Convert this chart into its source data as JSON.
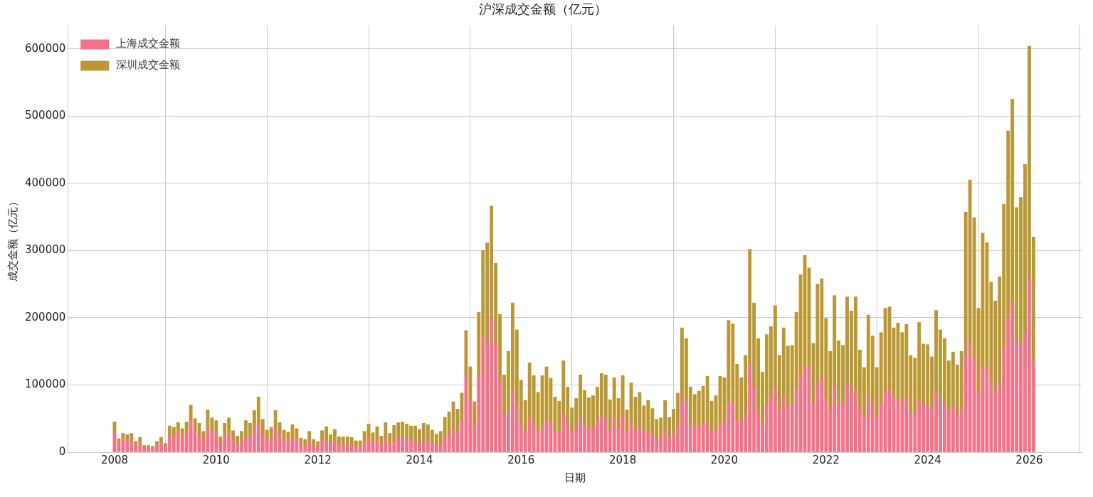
{
  "chart_data": {
    "type": "bar",
    "title": "沪深成交金额（亿元）",
    "xlabel": "日期",
    "ylabel": "成交金额（亿元）",
    "stacked": true,
    "grid": true,
    "legend": "top left",
    "xlim": [
      "2007-01-30",
      "2027-01-12"
    ],
    "xticks": [
      "2008",
      "2010",
      "2012",
      "2014",
      "2016",
      "2018",
      "2020",
      "2022",
      "2024",
      "2026"
    ],
    "ylim": [
      0,
      635000
    ],
    "yticks": [
      0,
      100000,
      200000,
      300000,
      400000,
      500000,
      600000
    ],
    "x": [
      "2008-01",
      "2008-02",
      "2008-03",
      "2008-04",
      "2008-05",
      "2008-06",
      "2008-07",
      "2008-08",
      "2008-09",
      "2008-10",
      "2008-11",
      "2008-12",
      "2009-01",
      "2009-02",
      "2009-03",
      "2009-04",
      "2009-05",
      "2009-06",
      "2009-07",
      "2009-08",
      "2009-09",
      "2009-10",
      "2009-11",
      "2009-12",
      "2010-01",
      "2010-02",
      "2010-03",
      "2010-04",
      "2010-05",
      "2010-06",
      "2010-07",
      "2010-08",
      "2010-09",
      "2010-10",
      "2010-11",
      "2010-12",
      "2011-01",
      "2011-02",
      "2011-03",
      "2011-04",
      "2011-05",
      "2011-06",
      "2011-07",
      "2011-08",
      "2011-09",
      "2011-10",
      "2011-11",
      "2011-12",
      "2012-01",
      "2012-02",
      "2012-03",
      "2012-04",
      "2012-05",
      "2012-06",
      "2012-07",
      "2012-08",
      "2012-09",
      "2012-10",
      "2012-11",
      "2012-12",
      "2013-01",
      "2013-02",
      "2013-03",
      "2013-04",
      "2013-05",
      "2013-06",
      "2013-07",
      "2013-08",
      "2013-09",
      "2013-10",
      "2013-11",
      "2013-12",
      "2014-01",
      "2014-02",
      "2014-03",
      "2014-04",
      "2014-05",
      "2014-06",
      "2014-07",
      "2014-08",
      "2014-09",
      "2014-10",
      "2014-11",
      "2014-12",
      "2015-01",
      "2015-02",
      "2015-03",
      "2015-04",
      "2015-05",
      "2015-06",
      "2015-07",
      "2015-08",
      "2015-09",
      "2015-10",
      "2015-11",
      "2015-12",
      "2016-01",
      "2016-02",
      "2016-03",
      "2016-04",
      "2016-05",
      "2016-06",
      "2016-07",
      "2016-08",
      "2016-09",
      "2016-10",
      "2016-11",
      "2016-12",
      "2017-01",
      "2017-02",
      "2017-03",
      "2017-04",
      "2017-05",
      "2017-06",
      "2017-07",
      "2017-08",
      "2017-09",
      "2017-10",
      "2017-11",
      "2017-12",
      "2018-01",
      "2018-02",
      "2018-03",
      "2018-04",
      "2018-05",
      "2018-06",
      "2018-07",
      "2018-08",
      "2018-09",
      "2018-10",
      "2018-11",
      "2018-12",
      "2019-01",
      "2019-02",
      "2019-03",
      "2019-04",
      "2019-05",
      "2019-06",
      "2019-07",
      "2019-08",
      "2019-09",
      "2019-10",
      "2019-11",
      "2019-12",
      "2020-01",
      "2020-02",
      "2020-03",
      "2020-04",
      "2020-05",
      "2020-06",
      "2020-07",
      "2020-08",
      "2020-09",
      "2020-10",
      "2020-11",
      "2020-12",
      "2021-01",
      "2021-02",
      "2021-03",
      "2021-04",
      "2021-05",
      "2021-06",
      "2021-07",
      "2021-08",
      "2021-09",
      "2021-10",
      "2021-11",
      "2021-12",
      "2022-01",
      "2022-02",
      "2022-03",
      "2022-04",
      "2022-05",
      "2022-06",
      "2022-07",
      "2022-08",
      "2022-09",
      "2022-10",
      "2022-11",
      "2022-12",
      "2023-01",
      "2023-02",
      "2023-03",
      "2023-04",
      "2023-05",
      "2023-06",
      "2023-07",
      "2023-08",
      "2023-09",
      "2023-10",
      "2023-11",
      "2023-12",
      "2024-01",
      "2024-02",
      "2024-03",
      "2024-04",
      "2024-05",
      "2024-06",
      "2024-07",
      "2024-08",
      "2024-09",
      "2024-10",
      "2024-11",
      "2024-12",
      "2025-01",
      "2025-02",
      "2025-03",
      "2025-04",
      "2025-05",
      "2025-06",
      "2025-07",
      "2025-08",
      "2025-09",
      "2025-10",
      "2025-11",
      "2025-12",
      "2026-01",
      "2026-02"
    ],
    "series": [
      {
        "name": "上海成交金额",
        "color": "#f77189",
        "values": [
          30000,
          13000,
          18000,
          18000,
          19000,
          10000,
          14000,
          7000,
          7000,
          6000,
          10000,
          14000,
          9000,
          26000,
          23000,
          29000,
          23000,
          30000,
          47000,
          33000,
          26000,
          19000,
          38000,
          31000,
          28000,
          13000,
          24000,
          29000,
          18000,
          11000,
          17000,
          23000,
          22000,
          35000,
          44000,
          26000,
          19000,
          20000,
          35000,
          27000,
          19000,
          18000,
          22000,
          18000,
          11000,
          10000,
          16000,
          9000,
          8000,
          17000,
          19000,
          13000,
          18000,
          11000,
          11000,
          11000,
          10000,
          8000,
          8000,
          16000,
          21000,
          15000,
          19000,
          11000,
          20000,
          13000,
          17000,
          20000,
          24000,
          20000,
          18000,
          17000,
          13000,
          17000,
          18000,
          15000,
          11000,
          13000,
          22000,
          26000,
          35000,
          30000,
          48000,
          115000,
          77000,
          40000,
          113000,
          173000,
          163000,
          200000,
          161000,
          107000,
          56000,
          63000,
          92000,
          71000,
          42000,
          30000,
          53000,
          41000,
          31000,
          37000,
          47000,
          44000,
          30000,
          30000,
          58000,
          44000,
          30000,
          37000,
          50000,
          41000,
          36000,
          36000,
          45000,
          55000,
          49000,
          33000,
          51000,
          36000,
          57000,
          31000,
          44000,
          33000,
          38000,
          30000,
          31000,
          28000,
          20000,
          24000,
          33000,
          22000,
          27000,
          38000,
          82000,
          75000,
          41000,
          38000,
          39000,
          42000,
          44000,
          29000,
          33000,
          44000,
          44000,
          75000,
          74000,
          50000,
          44000,
          57000,
          132000,
          96000,
          61000,
          42000,
          72000,
          83000,
          96000,
          64000,
          83000,
          68000,
          71000,
          93000,
          115000,
          127000,
          129000,
          72000,
          103000,
          110000,
          82000,
          62000,
          99000,
          75000,
          71000,
          105000,
          88000,
          94000,
          66000,
          53000,
          85000,
          72000,
          52000,
          72000,
          91000,
          93000,
          82000,
          78000,
          73000,
          83000,
          61000,
          57000,
          78000,
          69000,
          73000,
          65000,
          90000,
          81000,
          73000,
          61000,
          68000,
          56000,
          65000,
          143000,
          164000,
          139000,
          87000,
          126000,
          125000,
          107000,
          89000,
          102000,
          156000,
          201000,
          227000,
          164000,
          162000,
          178000,
          259000,
          137000
        ]
      },
      {
        "name": "深圳成交金额",
        "color": "#bb9832",
        "values": [
          15000,
          7000,
          10000,
          8000,
          9000,
          6000,
          8000,
          3000,
          3000,
          3000,
          6000,
          8000,
          4000,
          13000,
          14000,
          15000,
          12000,
          15000,
          23000,
          17000,
          17000,
          12000,
          25000,
          20000,
          19000,
          10000,
          19000,
          22000,
          14000,
          13000,
          14000,
          24000,
          21000,
          27000,
          38000,
          23000,
          14000,
          17000,
          27000,
          17000,
          14000,
          12000,
          19000,
          17000,
          10000,
          9000,
          15000,
          10000,
          8000,
          15000,
          19000,
          13000,
          16000,
          12000,
          12000,
          12000,
          12000,
          9000,
          9000,
          15000,
          21000,
          14000,
          19000,
          13000,
          24000,
          15000,
          23000,
          24000,
          21000,
          22000,
          21000,
          22000,
          21000,
          26000,
          23000,
          18000,
          16000,
          18000,
          30000,
          34000,
          40000,
          34000,
          40000,
          66000,
          50000,
          35000,
          95000,
          127000,
          148000,
          166000,
          120000,
          98000,
          59000,
          87000,
          130000,
          111000,
          65000,
          47000,
          80000,
          73000,
          58000,
          77000,
          80000,
          66000,
          52000,
          46000,
          78000,
          53000,
          36000,
          43000,
          65000,
          51000,
          45000,
          48000,
          52000,
          62000,
          66000,
          45000,
          60000,
          44000,
          57000,
          32000,
          59000,
          49000,
          51000,
          39000,
          46000,
          37000,
          29000,
          27000,
          44000,
          30000,
          37000,
          50000,
          103000,
          94000,
          56000,
          48000,
          52000,
          56000,
          69000,
          47000,
          51000,
          69000,
          67000,
          121000,
          117000,
          81000,
          67000,
          87000,
          170000,
          126000,
          108000,
          77000,
          103000,
          104000,
          122000,
          80000,
          102000,
          90000,
          88000,
          115000,
          149000,
          166000,
          145000,
          90000,
          147000,
          148000,
          117000,
          88000,
          134000,
          91000,
          88000,
          126000,
          122000,
          137000,
          86000,
          73000,
          119000,
          101000,
          74000,
          106000,
          123000,
          123000,
          103000,
          114000,
          105000,
          107000,
          83000,
          83000,
          115000,
          92000,
          87000,
          77000,
          121000,
          101000,
          96000,
          75000,
          81000,
          74000,
          85000,
          214000,
          241000,
          210000,
          127000,
          200000,
          187000,
          146000,
          136000,
          159000,
          213000,
          277000,
          298000,
          200000,
          217000,
          250000,
          345000,
          183000
        ]
      }
    ]
  }
}
